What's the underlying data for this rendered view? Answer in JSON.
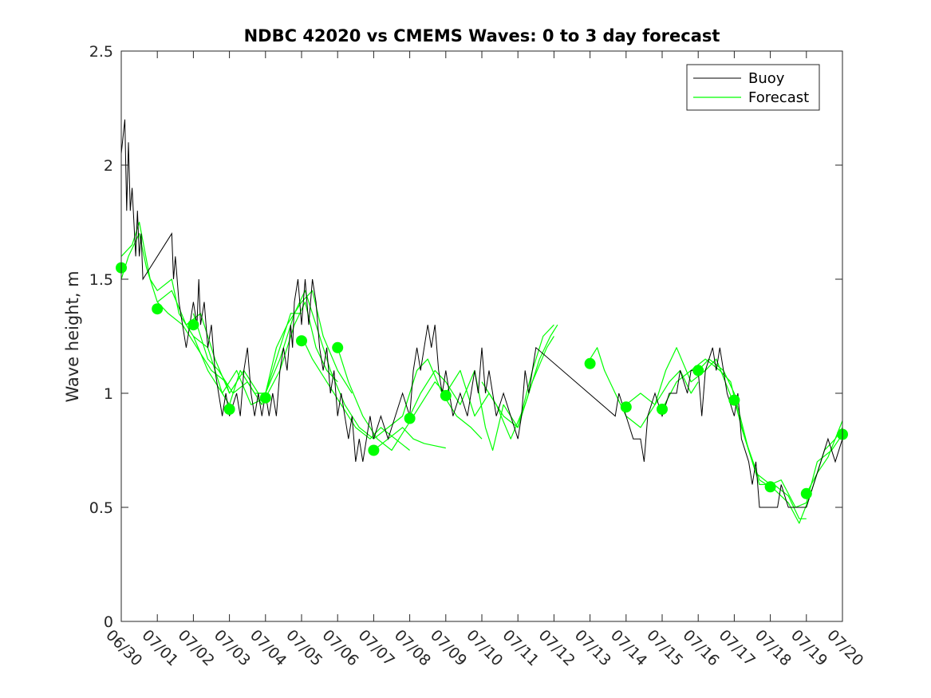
{
  "chart_data": {
    "type": "line",
    "title": "NDBC 42020 vs CMEMS Waves: 0 to 3 day forecast",
    "xlabel": "",
    "ylabel": "Wave height, m",
    "xlim": [
      "06/30",
      "07/20"
    ],
    "ylim": [
      0,
      2.5
    ],
    "x_tick_labels": [
      "06/30",
      "07/01",
      "07/02",
      "07/03",
      "07/04",
      "07/05",
      "07/06",
      "07/07",
      "07/08",
      "07/09",
      "07/10",
      "07/11",
      "07/12",
      "07/13",
      "07/14",
      "07/15",
      "07/16",
      "07/17",
      "07/18",
      "07/19",
      "07/20"
    ],
    "y_tick_labels": [
      "0",
      "0.5",
      "1",
      "1.5",
      "2",
      "2.5"
    ],
    "y_ticks": [
      0,
      0.5,
      1,
      1.5,
      2,
      2.5
    ],
    "grid": false,
    "legend_position": "top-right",
    "legend": [
      "Buoy",
      "Forecast"
    ],
    "colors": {
      "buoy": "#000000",
      "forecast": "#00ff00"
    },
    "buoy": [
      [
        0.0,
        2.05
      ],
      [
        0.1,
        2.2
      ],
      [
        0.15,
        1.8
      ],
      [
        0.2,
        2.1
      ],
      [
        0.25,
        1.8
      ],
      [
        0.3,
        1.9
      ],
      [
        0.4,
        1.6
      ],
      [
        0.45,
        1.8
      ],
      [
        0.5,
        1.6
      ],
      [
        0.55,
        1.7
      ],
      [
        0.6,
        1.5
      ],
      [
        1.4,
        1.7
      ],
      [
        1.45,
        1.5
      ],
      [
        1.5,
        1.6
      ],
      [
        1.6,
        1.4
      ],
      [
        1.7,
        1.3
      ],
      [
        1.8,
        1.2
      ],
      [
        1.9,
        1.3
      ],
      [
        2.0,
        1.4
      ],
      [
        2.1,
        1.3
      ],
      [
        2.15,
        1.5
      ],
      [
        2.2,
        1.3
      ],
      [
        2.3,
        1.4
      ],
      [
        2.4,
        1.2
      ],
      [
        2.5,
        1.3
      ],
      [
        2.6,
        1.1
      ],
      [
        2.7,
        1.0
      ],
      [
        2.8,
        0.9
      ],
      [
        2.9,
        1.0
      ],
      [
        3.0,
        0.9
      ],
      [
        3.1,
        0.95
      ],
      [
        3.2,
        1.0
      ],
      [
        3.3,
        0.9
      ],
      [
        3.4,
        1.1
      ],
      [
        3.5,
        1.2
      ],
      [
        3.6,
        1.0
      ],
      [
        3.7,
        0.9
      ],
      [
        3.8,
        1.0
      ],
      [
        3.9,
        0.9
      ],
      [
        4.0,
        1.0
      ],
      [
        4.1,
        0.9
      ],
      [
        4.2,
        1.0
      ],
      [
        4.3,
        0.9
      ],
      [
        4.4,
        1.1
      ],
      [
        4.5,
        1.2
      ],
      [
        4.6,
        1.1
      ],
      [
        4.7,
        1.3
      ],
      [
        4.75,
        1.2
      ],
      [
        4.8,
        1.4
      ],
      [
        4.9,
        1.5
      ],
      [
        5.0,
        1.3
      ],
      [
        5.1,
        1.5
      ],
      [
        5.2,
        1.3
      ],
      [
        5.3,
        1.5
      ],
      [
        5.4,
        1.4
      ],
      [
        5.5,
        1.2
      ],
      [
        5.6,
        1.1
      ],
      [
        5.7,
        1.2
      ],
      [
        5.8,
        1.0
      ],
      [
        5.9,
        1.1
      ],
      [
        6.0,
        0.9
      ],
      [
        6.1,
        1.0
      ],
      [
        6.2,
        0.9
      ],
      [
        6.3,
        0.8
      ],
      [
        6.4,
        0.9
      ],
      [
        6.5,
        0.7
      ],
      [
        6.6,
        0.8
      ],
      [
        6.7,
        0.7
      ],
      [
        6.8,
        0.8
      ],
      [
        6.9,
        0.9
      ],
      [
        7.0,
        0.8
      ],
      [
        7.2,
        0.9
      ],
      [
        7.4,
        0.8
      ],
      [
        7.6,
        0.9
      ],
      [
        7.8,
        1.0
      ],
      [
        8.0,
        0.9
      ],
      [
        8.1,
        1.1
      ],
      [
        8.2,
        1.2
      ],
      [
        8.3,
        1.1
      ],
      [
        8.4,
        1.2
      ],
      [
        8.5,
        1.3
      ],
      [
        8.6,
        1.2
      ],
      [
        8.7,
        1.3
      ],
      [
        8.8,
        1.1
      ],
      [
        8.9,
        1.0
      ],
      [
        9.0,
        1.1
      ],
      [
        9.2,
        0.9
      ],
      [
        9.4,
        1.0
      ],
      [
        9.6,
        0.9
      ],
      [
        9.8,
        1.1
      ],
      [
        9.9,
        1.0
      ],
      [
        10.0,
        1.2
      ],
      [
        10.1,
        1.0
      ],
      [
        10.2,
        1.1
      ],
      [
        10.4,
        0.9
      ],
      [
        10.6,
        1.0
      ],
      [
        10.8,
        0.9
      ],
      [
        11.0,
        0.8
      ],
      [
        11.1,
        0.9
      ],
      [
        11.2,
        1.1
      ],
      [
        11.3,
        1.0
      ],
      [
        11.4,
        1.1
      ],
      [
        11.5,
        1.2
      ],
      [
        13.7,
        0.9
      ],
      [
        13.8,
        1.0
      ],
      [
        14.0,
        0.9
      ],
      [
        14.2,
        0.8
      ],
      [
        14.4,
        0.8
      ],
      [
        14.5,
        0.7
      ],
      [
        14.6,
        0.9
      ],
      [
        14.8,
        1.0
      ],
      [
        15.0,
        0.9
      ],
      [
        15.2,
        1.0
      ],
      [
        15.4,
        1.0
      ],
      [
        15.5,
        1.1
      ],
      [
        15.7,
        1.0
      ],
      [
        15.8,
        1.1
      ],
      [
        16.0,
        1.1
      ],
      [
        16.1,
        0.9
      ],
      [
        16.2,
        1.1
      ],
      [
        16.4,
        1.2
      ],
      [
        16.5,
        1.1
      ],
      [
        16.6,
        1.2
      ],
      [
        16.8,
        1.0
      ],
      [
        17.0,
        0.9
      ],
      [
        17.1,
        1.0
      ],
      [
        17.2,
        0.8
      ],
      [
        17.4,
        0.7
      ],
      [
        17.5,
        0.6
      ],
      [
        17.6,
        0.7
      ],
      [
        17.7,
        0.5
      ],
      [
        18.0,
        0.5
      ],
      [
        18.2,
        0.5
      ],
      [
        18.3,
        0.6
      ],
      [
        18.5,
        0.5
      ],
      [
        18.8,
        0.5
      ],
      [
        19.0,
        0.5
      ],
      [
        19.2,
        0.6
      ],
      [
        19.4,
        0.7
      ],
      [
        19.6,
        0.8
      ],
      [
        19.8,
        0.7
      ],
      [
        20.0,
        0.8
      ]
    ],
    "forecast_series": [
      [
        [
          0.0,
          1.6
        ],
        [
          0.3,
          1.65
        ],
        [
          0.5,
          1.75
        ],
        [
          0.8,
          1.5
        ],
        [
          1.0,
          1.45
        ],
        [
          1.4,
          1.5
        ],
        [
          1.6,
          1.35
        ],
        [
          2.0,
          1.25
        ],
        [
          2.4,
          1.2
        ],
        [
          2.8,
          1.0
        ],
        [
          3.0,
          0.95
        ]
      ],
      [
        [
          0.0,
          1.5
        ],
        [
          0.2,
          1.6
        ],
        [
          0.5,
          1.7
        ],
        [
          0.7,
          1.55
        ],
        [
          1.0,
          1.4
        ],
        [
          1.3,
          1.35
        ],
        [
          1.7,
          1.3
        ],
        [
          2.1,
          1.2
        ],
        [
          2.5,
          1.1
        ],
        [
          2.9,
          1.05
        ],
        [
          3.0,
          1.0
        ]
      ],
      [
        [
          1.0,
          1.4
        ],
        [
          1.4,
          1.45
        ],
        [
          1.8,
          1.3
        ],
        [
          2.2,
          1.35
        ],
        [
          2.6,
          1.15
        ],
        [
          3.0,
          1.0
        ],
        [
          3.4,
          1.1
        ],
        [
          3.8,
          1.0
        ],
        [
          4.0,
          1.0
        ]
      ],
      [
        [
          2.0,
          1.35
        ],
        [
          2.4,
          1.15
        ],
        [
          2.7,
          1.1
        ],
        [
          3.1,
          1.0
        ],
        [
          3.5,
          1.05
        ],
        [
          3.9,
          0.95
        ],
        [
          4.3,
          1.15
        ],
        [
          4.7,
          1.35
        ],
        [
          5.0,
          1.35
        ]
      ],
      [
        [
          2.0,
          1.25
        ],
        [
          2.4,
          1.1
        ],
        [
          2.8,
          1.0
        ],
        [
          3.2,
          1.1
        ],
        [
          3.6,
          0.95
        ],
        [
          4.0,
          0.98
        ],
        [
          4.4,
          1.1
        ],
        [
          4.8,
          1.3
        ],
        [
          5.1,
          1.4
        ],
        [
          5.4,
          1.2
        ],
        [
          5.7,
          1.1
        ],
        [
          6.0,
          1.05
        ]
      ],
      [
        [
          3.0,
          0.95
        ],
        [
          3.3,
          1.1
        ],
        [
          3.7,
          1.0
        ],
        [
          4.0,
          1.0
        ],
        [
          4.3,
          1.2
        ],
        [
          4.6,
          1.3
        ],
        [
          5.0,
          1.4
        ],
        [
          5.3,
          1.45
        ],
        [
          5.6,
          1.25
        ],
        [
          6.0,
          1.1
        ],
        [
          6.4,
          1.0
        ]
      ],
      [
        [
          4.0,
          1.0
        ],
        [
          4.4,
          1.15
        ],
        [
          4.8,
          1.35
        ],
        [
          5.1,
          1.45
        ],
        [
          5.4,
          1.3
        ],
        [
          5.8,
          1.1
        ],
        [
          6.2,
          0.95
        ],
        [
          6.6,
          0.85
        ],
        [
          7.0,
          0.8
        ]
      ],
      [
        [
          5.0,
          1.25
        ],
        [
          5.3,
          1.15
        ],
        [
          5.7,
          1.05
        ],
        [
          6.1,
          0.95
        ],
        [
          6.5,
          0.85
        ],
        [
          6.9,
          0.8
        ],
        [
          7.2,
          0.85
        ],
        [
          7.6,
          0.8
        ],
        [
          8.0,
          0.75
        ]
      ],
      [
        [
          6.0,
          1.2
        ],
        [
          6.3,
          1.05
        ],
        [
          6.7,
          0.9
        ],
        [
          7.1,
          0.8
        ],
        [
          7.5,
          0.75
        ],
        [
          7.9,
          0.85
        ],
        [
          8.3,
          0.95
        ],
        [
          8.7,
          1.05
        ],
        [
          9.0,
          1.0
        ]
      ],
      [
        [
          7.0,
          0.8
        ],
        [
          7.4,
          0.85
        ],
        [
          7.8,
          0.9
        ],
        [
          8.2,
          1.1
        ],
        [
          8.5,
          1.15
        ],
        [
          8.9,
          1.0
        ],
        [
          9.3,
          0.9
        ],
        [
          9.7,
          0.85
        ],
        [
          10.0,
          0.8
        ]
      ],
      [
        [
          7.0,
          0.75
        ],
        [
          7.4,
          0.8
        ],
        [
          7.8,
          0.85
        ],
        [
          8.1,
          0.8
        ],
        [
          8.4,
          0.78
        ],
        [
          8.7,
          0.77
        ],
        [
          9.0,
          0.76
        ]
      ],
      [
        [
          8.0,
          0.9
        ],
        [
          8.3,
          1.0
        ],
        [
          8.7,
          1.1
        ],
        [
          9.0,
          1.05
        ],
        [
          9.4,
          0.95
        ],
        [
          9.8,
          1.1
        ],
        [
          10.1,
          0.85
        ],
        [
          10.3,
          0.75
        ],
        [
          10.6,
          0.95
        ],
        [
          11.0,
          0.85
        ],
        [
          11.4,
          1.1
        ],
        [
          11.7,
          1.25
        ],
        [
          12.0,
          1.3
        ]
      ],
      [
        [
          9.0,
          1.0
        ],
        [
          9.4,
          1.1
        ],
        [
          9.8,
          0.9
        ],
        [
          10.2,
          1.0
        ],
        [
          10.6,
          0.9
        ],
        [
          11.0,
          0.85
        ],
        [
          11.4,
          1.05
        ],
        [
          11.8,
          1.2
        ],
        [
          12.0,
          1.25
        ]
      ],
      [
        [
          10.0,
          1.05
        ],
        [
          10.4,
          0.95
        ],
        [
          10.8,
          0.8
        ],
        [
          11.2,
          0.95
        ],
        [
          11.6,
          1.15
        ],
        [
          11.9,
          1.25
        ],
        [
          12.1,
          1.3
        ]
      ],
      [
        [
          13.0,
          1.15
        ],
        [
          13.2,
          1.2
        ],
        [
          13.4,
          1.1
        ],
        [
          13.7,
          1.0
        ],
        [
          14.0,
          0.9
        ],
        [
          14.4,
          0.85
        ],
        [
          14.8,
          0.95
        ],
        [
          15.2,
          1.05
        ],
        [
          15.5,
          1.1
        ],
        [
          15.8,
          1.0
        ],
        [
          16.0,
          1.05
        ]
      ],
      [
        [
          14.0,
          0.95
        ],
        [
          14.4,
          1.0
        ],
        [
          14.8,
          0.95
        ],
        [
          15.1,
          1.1
        ],
        [
          15.4,
          1.2
        ],
        [
          15.8,
          1.05
        ],
        [
          16.2,
          1.1
        ],
        [
          16.5,
          1.15
        ],
        [
          17.0,
          0.95
        ]
      ],
      [
        [
          15.0,
          0.93
        ],
        [
          15.4,
          1.05
        ],
        [
          15.8,
          1.1
        ],
        [
          16.2,
          1.15
        ],
        [
          16.6,
          1.1
        ],
        [
          16.9,
          1.05
        ],
        [
          17.2,
          0.85
        ],
        [
          17.6,
          0.65
        ],
        [
          18.0,
          0.6
        ]
      ],
      [
        [
          16.0,
          1.1
        ],
        [
          16.3,
          1.15
        ],
        [
          16.7,
          1.1
        ],
        [
          17.0,
          1.0
        ],
        [
          17.4,
          0.75
        ],
        [
          17.7,
          0.6
        ],
        [
          18.1,
          0.6
        ],
        [
          18.5,
          0.55
        ],
        [
          18.8,
          0.45
        ],
        [
          19.0,
          0.45
        ]
      ],
      [
        [
          17.0,
          0.97
        ],
        [
          17.3,
          0.8
        ],
        [
          17.7,
          0.62
        ],
        [
          18.1,
          0.58
        ],
        [
          18.5,
          0.52
        ],
        [
          18.8,
          0.43
        ],
        [
          19.1,
          0.55
        ],
        [
          19.5,
          0.75
        ],
        [
          19.8,
          0.8
        ],
        [
          20.0,
          0.85
        ]
      ],
      [
        [
          18.0,
          0.6
        ],
        [
          18.3,
          0.62
        ],
        [
          18.7,
          0.5
        ],
        [
          19.0,
          0.52
        ],
        [
          19.3,
          0.7
        ],
        [
          19.7,
          0.75
        ],
        [
          20.0,
          0.82
        ]
      ],
      [
        [
          19.0,
          0.56
        ],
        [
          19.3,
          0.65
        ],
        [
          19.6,
          0.72
        ],
        [
          20.0,
          0.88
        ]
      ]
    ],
    "forecast_markers": [
      [
        0,
        1.55
      ],
      [
        1,
        1.37
      ],
      [
        2,
        1.3
      ],
      [
        3,
        0.93
      ],
      [
        4,
        0.98
      ],
      [
        5,
        1.23
      ],
      [
        6,
        1.2
      ],
      [
        7,
        0.75
      ],
      [
        8,
        0.89
      ],
      [
        9,
        0.99
      ],
      [
        13,
        1.13
      ],
      [
        14,
        0.94
      ],
      [
        15,
        0.93
      ],
      [
        16,
        1.1
      ],
      [
        17,
        0.97
      ],
      [
        18,
        0.59
      ],
      [
        19,
        0.56
      ],
      [
        20,
        0.82
      ]
    ]
  }
}
